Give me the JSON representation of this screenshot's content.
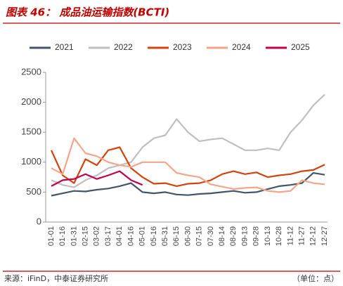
{
  "chart_data": {
    "type": "line",
    "title": "图表 46： 成品油运输指数(BCTI)",
    "source": "来源：iFinD，中泰证券研究所",
    "unit": "（单位：点）",
    "categories": [
      "01-01",
      "01-16",
      "01-31",
      "02-15",
      "03-02",
      "03-17",
      "04-01",
      "04-16",
      "05-01",
      "05-16",
      "05-31",
      "06-15",
      "06-30",
      "07-15",
      "07-30",
      "08-14",
      "08-29",
      "09-13",
      "09-28",
      "10-13",
      "10-28",
      "11-12",
      "11-27",
      "12-12",
      "12-27"
    ],
    "series": [
      {
        "name": "2021",
        "color": "#44546a",
        "values": [
          440,
          480,
          520,
          510,
          540,
          560,
          600,
          650,
          500,
          480,
          500,
          460,
          450,
          470,
          480,
          500,
          520,
          490,
          500,
          550,
          600,
          620,
          650,
          820,
          790
        ]
      },
      {
        "name": "2022",
        "color": "#bfbfbf",
        "values": [
          700,
          620,
          580,
          700,
          780,
          900,
          950,
          1000,
          1250,
          1400,
          1450,
          1720,
          1500,
          1350,
          1380,
          1400,
          1300,
          1200,
          1200,
          1230,
          1200,
          1500,
          1700,
          1950,
          2130
        ]
      },
      {
        "name": "2023",
        "color": "#d4430f",
        "values": [
          1200,
          780,
          650,
          1050,
          950,
          1200,
          1250,
          900,
          750,
          640,
          650,
          600,
          640,
          650,
          700,
          800,
          850,
          800,
          830,
          750,
          780,
          800,
          850,
          870,
          960
        ]
      },
      {
        "name": "2024",
        "color": "#f4a58a",
        "values": [
          900,
          800,
          1400,
          1150,
          1100,
          1000,
          950,
          920,
          1000,
          1000,
          1000,
          820,
          780,
          750,
          630,
          590,
          550,
          570,
          580,
          520,
          500,
          520,
          700,
          650,
          630
        ]
      },
      {
        "name": "2025",
        "color": "#c0004a",
        "values": [
          600,
          700,
          720,
          800,
          720,
          780,
          850,
          700,
          620,
          null,
          null,
          null,
          null,
          null,
          null,
          null,
          null,
          null,
          null,
          null,
          null,
          null,
          null,
          null,
          null
        ]
      }
    ],
    "ylim": [
      0,
      2500
    ],
    "yticks": [
      0,
      500,
      1000,
      1500,
      2000,
      2500
    ],
    "grid": false
  }
}
